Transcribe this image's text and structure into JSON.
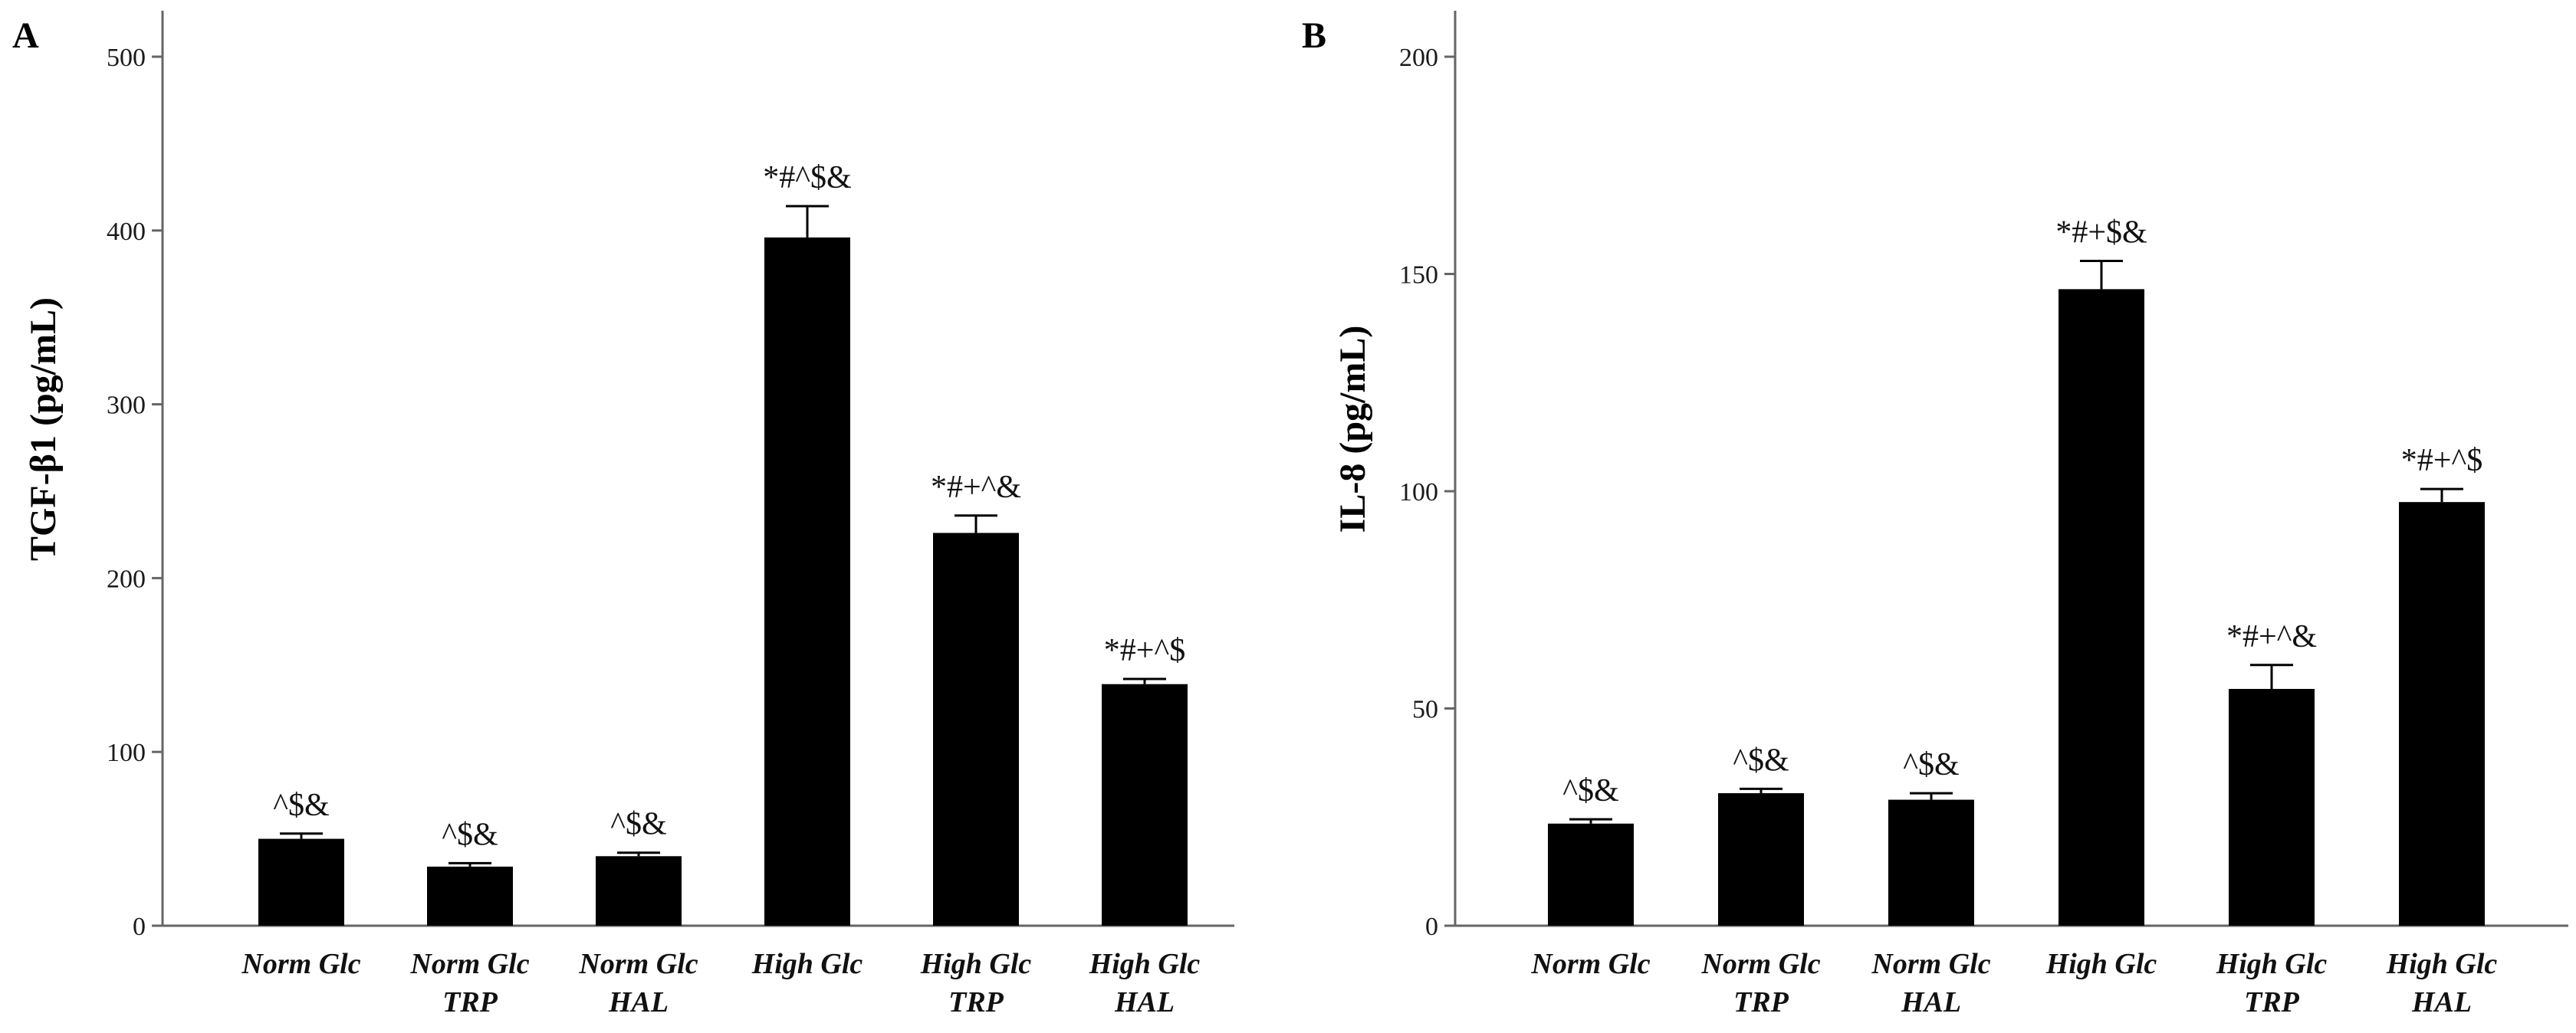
{
  "chart_data": [
    {
      "panel": "A",
      "type": "bar",
      "ylabel": "TGF-β1 (pg/mL)",
      "xlabel": "",
      "ylim": [
        0,
        500
      ],
      "yticks": [
        "0",
        "100",
        "200",
        "300",
        "400",
        "500"
      ],
      "ytick_values": [
        0,
        100,
        200,
        300,
        400,
        500
      ],
      "categories": [
        [
          "Norm Glc"
        ],
        [
          "Norm Glc",
          "TRP"
        ],
        [
          "Norm Glc",
          "HAL"
        ],
        [
          "High Glc"
        ],
        [
          "High Glc",
          "TRP"
        ],
        [
          "High Glc",
          "HAL"
        ]
      ],
      "values": [
        50,
        34,
        40,
        396,
        226,
        139
      ],
      "errors": [
        3,
        2,
        2,
        18,
        10,
        3
      ],
      "significance": [
        "^$&",
        "^$&",
        "^$&",
        "*#^$&",
        "*#+^&",
        "*#+^$"
      ],
      "color": "#000000"
    },
    {
      "panel": "B",
      "type": "bar",
      "ylabel": "IL-8 (pg/mL)",
      "xlabel": "",
      "ylim": [
        0,
        210
      ],
      "yticks": [
        "0",
        "50",
        "100",
        "150",
        "200"
      ],
      "ytick_values": [
        0,
        50,
        100,
        150,
        200
      ],
      "categories": [
        [
          "Norm Glc"
        ],
        [
          "Norm Glc",
          "TRP"
        ],
        [
          "Norm Glc",
          "HAL"
        ],
        [
          "High Glc"
        ],
        [
          "High Glc",
          "TRP"
        ],
        [
          "High Glc",
          "HAL"
        ]
      ],
      "values": [
        23.5,
        30.5,
        29,
        146.5,
        54.5,
        97.5
      ],
      "errors": [
        1,
        1,
        1.5,
        6.5,
        5.5,
        3
      ],
      "significance": [
        "^$&",
        "^$&",
        "^$&",
        "*#+$&",
        "*#+^&",
        "*#+^$"
      ],
      "color": "#000000"
    }
  ]
}
